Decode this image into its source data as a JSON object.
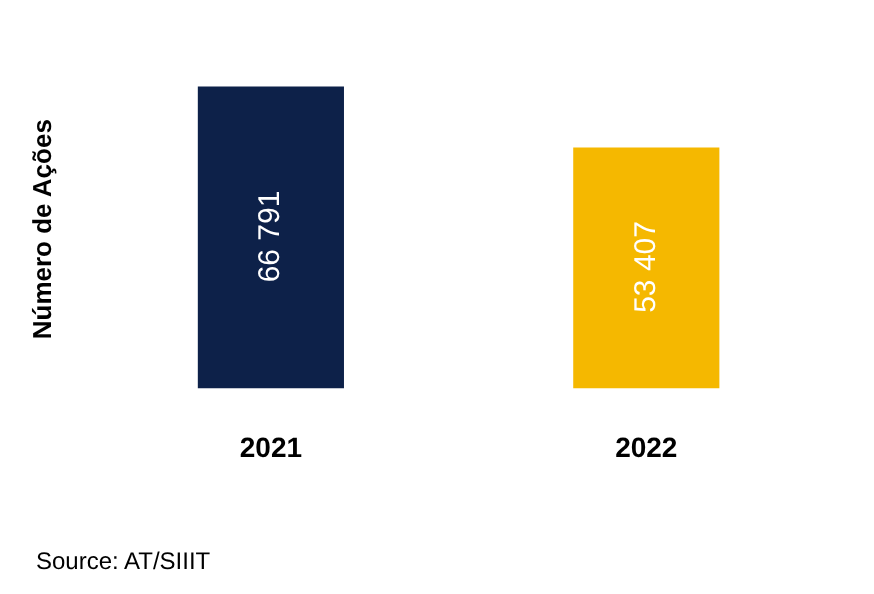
{
  "chart_data": {
    "type": "bar",
    "ylabel": "Número de Ações",
    "categories": [
      "2021",
      "2022"
    ],
    "values": [
      66791,
      53407
    ],
    "colors": [
      "#0d2149",
      "#f5b800"
    ],
    "value_labels": [
      "66 791",
      "53 407"
    ],
    "annotations": [
      "Source: AT/SIIIT"
    ],
    "grid": false,
    "legend": false
  }
}
